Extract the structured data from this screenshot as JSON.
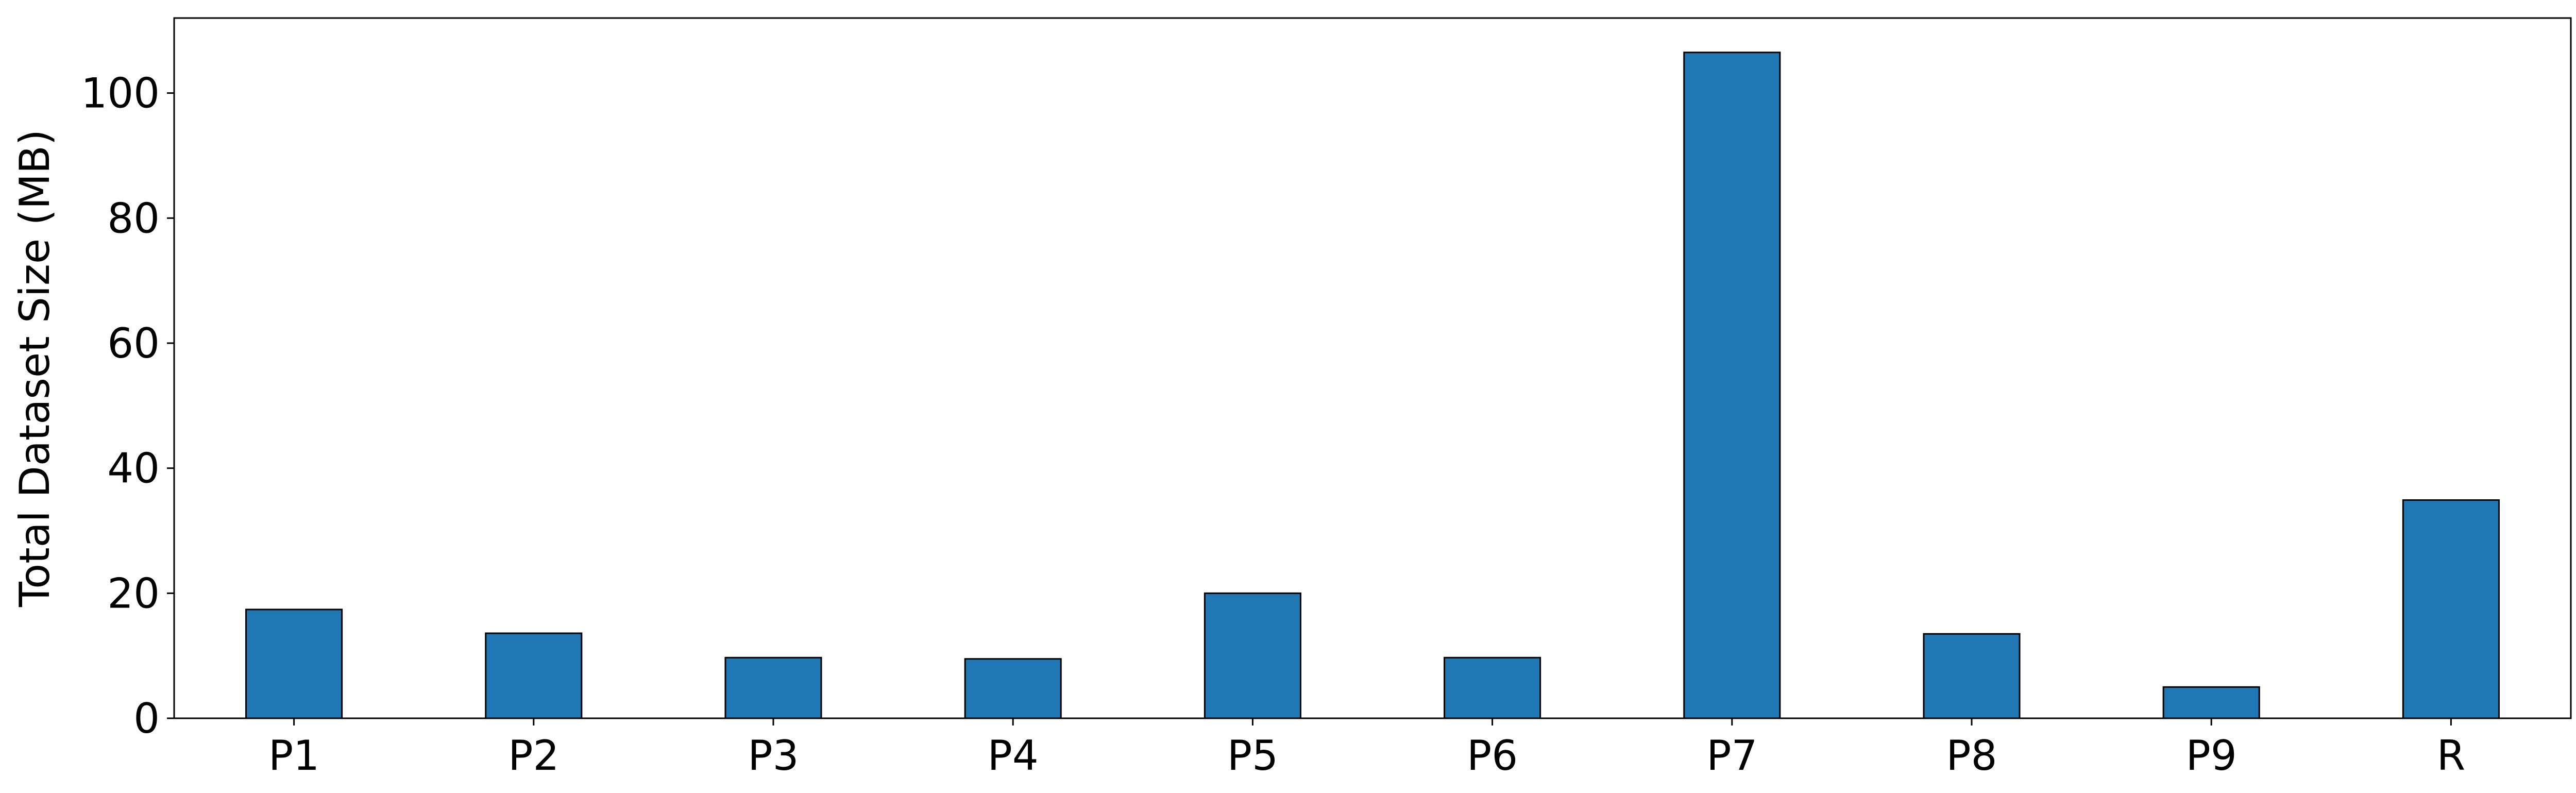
{
  "chart_data": {
    "type": "bar",
    "title": "",
    "xlabel": "",
    "ylabel": "Total Dataset Size (MB)",
    "categories": [
      "P1",
      "P2",
      "P3",
      "P4",
      "P5",
      "P6",
      "P7",
      "P8",
      "P9",
      "R"
    ],
    "values": [
      17.4,
      13.6,
      9.7,
      9.5,
      20.0,
      9.7,
      106.5,
      13.5,
      5.0,
      34.9
    ],
    "ylim": [
      0,
      112
    ],
    "yticks": [
      0,
      20,
      40,
      60,
      80,
      100
    ],
    "grid": false,
    "legend": "none",
    "colors": {
      "bar": "#1f77b4",
      "edge": "#000000"
    }
  }
}
